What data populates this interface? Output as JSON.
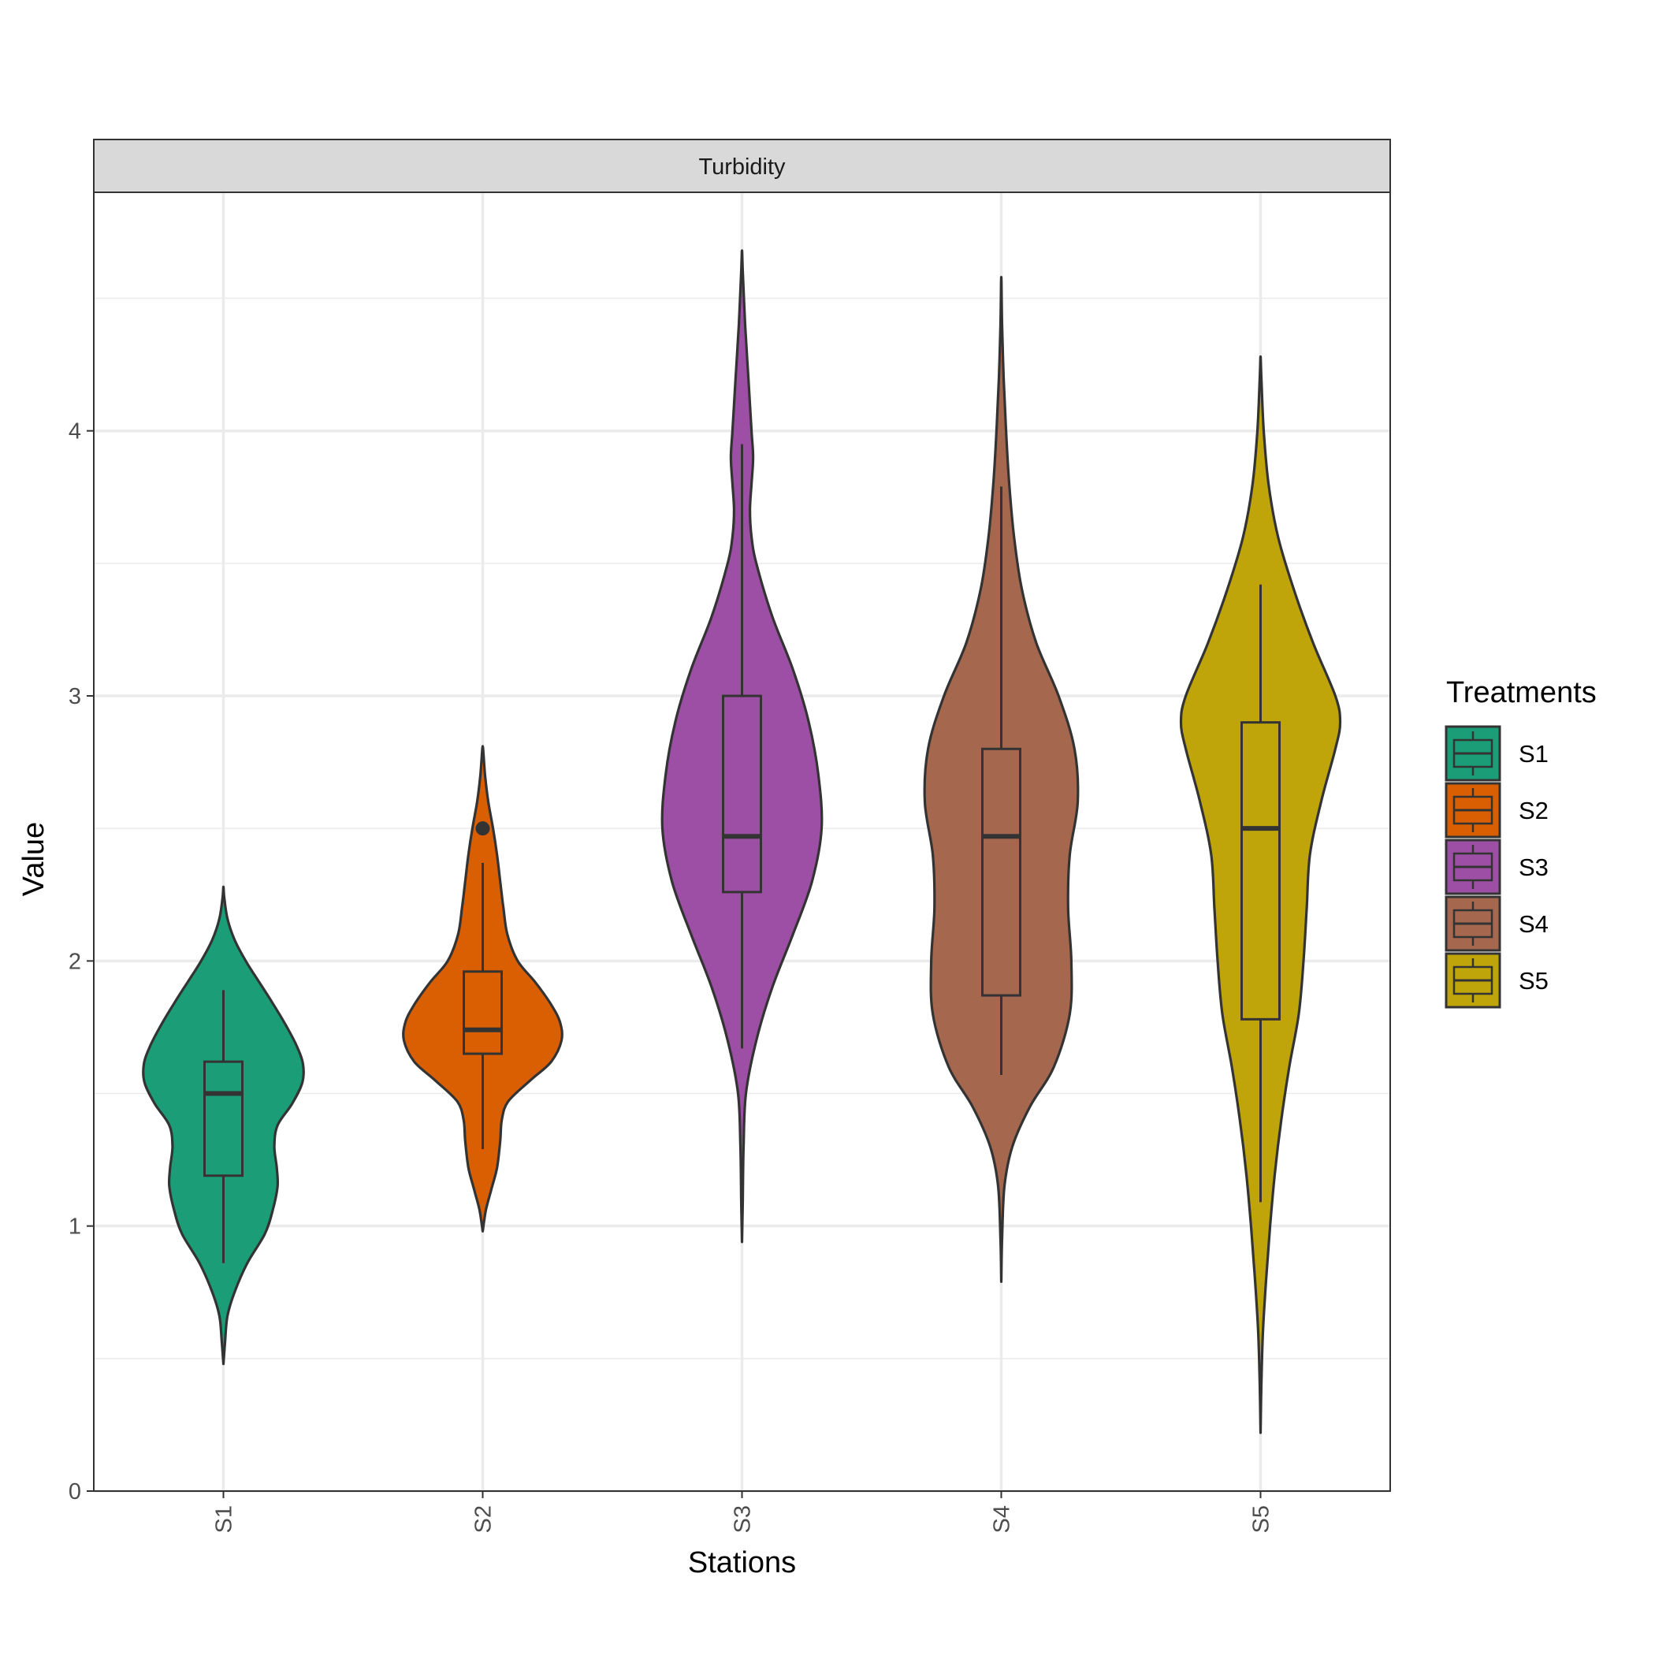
{
  "chart_data": {
    "type": "violin",
    "facet_title": "Turbidity",
    "xlabel": "Stations",
    "ylabel": "Value",
    "ylim": [
      0,
      4.9
    ],
    "yticks": [
      0,
      1,
      2,
      3,
      4
    ],
    "grid": true,
    "legend": {
      "title": "Treatments",
      "position": "right"
    },
    "categories": [
      "S1",
      "S2",
      "S3",
      "S4",
      "S5"
    ],
    "series": [
      {
        "name": "S1",
        "color": "#1b9e77",
        "box": {
          "whisker_low": 0.86,
          "q1": 1.19,
          "median": 1.5,
          "q3": 1.62,
          "whisker_high": 1.89
        },
        "outliers": [],
        "violin": {
          "y": [
            0.48,
            0.56,
            0.66,
            0.75,
            0.86,
            0.97,
            1.06,
            1.15,
            1.22,
            1.3,
            1.38,
            1.46,
            1.54,
            1.61,
            1.68,
            1.76,
            1.84,
            1.92,
            2.0,
            2.08,
            2.16,
            2.24,
            2.28
          ],
          "width": [
            0.0,
            0.02,
            0.05,
            0.14,
            0.3,
            0.52,
            0.62,
            0.68,
            0.67,
            0.64,
            0.68,
            0.86,
            0.99,
            1.0,
            0.92,
            0.78,
            0.62,
            0.45,
            0.28,
            0.14,
            0.05,
            0.01,
            0.0
          ]
        }
      },
      {
        "name": "S2",
        "color": "#d95f02",
        "box": {
          "whisker_low": 1.29,
          "q1": 1.65,
          "median": 1.74,
          "q3": 1.96,
          "whisker_high": 2.37
        },
        "outliers": [
          2.5
        ],
        "violin": {
          "y": [
            0.98,
            1.06,
            1.14,
            1.22,
            1.32,
            1.4,
            1.47,
            1.55,
            1.62,
            1.7,
            1.77,
            1.84,
            1.92,
            2.0,
            2.1,
            2.2,
            2.3,
            2.4,
            2.5,
            2.6,
            2.7,
            2.78,
            2.81
          ],
          "width": [
            0.0,
            0.04,
            0.11,
            0.18,
            0.22,
            0.24,
            0.32,
            0.6,
            0.86,
            0.99,
            0.97,
            0.85,
            0.66,
            0.44,
            0.31,
            0.26,
            0.22,
            0.18,
            0.13,
            0.07,
            0.03,
            0.01,
            0.0
          ]
        }
      },
      {
        "name": "S3",
        "color": "#9c4fa4",
        "box": {
          "whisker_low": 1.67,
          "q1": 2.26,
          "median": 2.47,
          "q3": 3.0,
          "whisker_high": 3.95
        },
        "outliers": [],
        "violin": {
          "y": [
            0.94,
            1.1,
            1.3,
            1.5,
            1.7,
            1.9,
            2.1,
            2.3,
            2.5,
            2.7,
            2.9,
            3.1,
            3.3,
            3.5,
            3.6,
            3.7,
            3.8,
            3.9,
            4.0,
            4.2,
            4.4,
            4.6,
            4.68
          ],
          "width": [
            0.0,
            0.01,
            0.02,
            0.05,
            0.18,
            0.38,
            0.64,
            0.88,
            1.0,
            0.96,
            0.84,
            0.64,
            0.38,
            0.18,
            0.12,
            0.1,
            0.12,
            0.14,
            0.12,
            0.08,
            0.04,
            0.01,
            0.0
          ]
        }
      },
      {
        "name": "S4",
        "color": "#a6674f",
        "box": {
          "whisker_low": 1.57,
          "q1": 1.87,
          "median": 2.47,
          "q3": 2.8,
          "whisker_high": 3.79
        },
        "outliers": [],
        "violin": {
          "y": [
            0.79,
            0.95,
            1.15,
            1.3,
            1.45,
            1.6,
            1.8,
            2.0,
            2.2,
            2.4,
            2.6,
            2.8,
            3.0,
            3.2,
            3.4,
            3.6,
            3.8,
            4.0,
            4.2,
            4.4,
            4.58
          ],
          "width": [
            0.0,
            0.01,
            0.04,
            0.14,
            0.36,
            0.66,
            0.86,
            0.88,
            0.84,
            0.86,
            0.96,
            0.92,
            0.72,
            0.44,
            0.26,
            0.16,
            0.1,
            0.06,
            0.03,
            0.01,
            0.0
          ]
        }
      },
      {
        "name": "S5",
        "color": "#bfa50a",
        "box": {
          "whisker_low": 1.09,
          "q1": 1.78,
          "median": 2.5,
          "q3": 2.9,
          "whisker_high": 3.42
        },
        "outliers": [],
        "violin": {
          "y": [
            0.22,
            0.4,
            0.6,
            0.8,
            1.0,
            1.2,
            1.4,
            1.6,
            1.8,
            2.0,
            2.2,
            2.4,
            2.6,
            2.8,
            2.9,
            3.0,
            3.2,
            3.4,
            3.6,
            3.8,
            4.0,
            4.2,
            4.28
          ],
          "width": [
            0.0,
            0.01,
            0.03,
            0.07,
            0.12,
            0.18,
            0.26,
            0.36,
            0.48,
            0.54,
            0.58,
            0.62,
            0.76,
            0.94,
            1.0,
            0.94,
            0.66,
            0.42,
            0.22,
            0.1,
            0.04,
            0.01,
            0.0
          ]
        }
      }
    ]
  }
}
